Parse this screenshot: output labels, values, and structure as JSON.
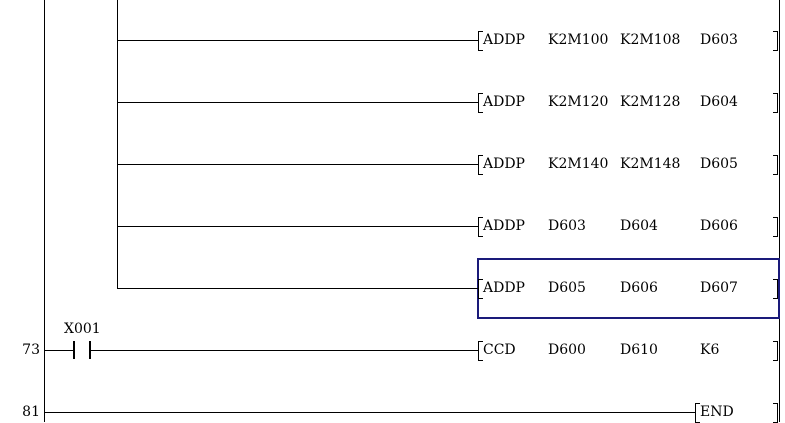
{
  "colors": {
    "cursor": "#1a1a7a",
    "lines": "#000000"
  },
  "rungs": [
    {
      "step": "",
      "branch": true,
      "instruction": "ADDP",
      "operands": [
        "K2M100",
        "K2M108",
        "D603"
      ]
    },
    {
      "step": "",
      "branch": true,
      "instruction": "ADDP",
      "operands": [
        "K2M120",
        "K2M128",
        "D604"
      ]
    },
    {
      "step": "",
      "branch": true,
      "instruction": "ADDP",
      "operands": [
        "K2M140",
        "K2M148",
        "D605"
      ]
    },
    {
      "step": "",
      "branch": true,
      "instruction": "ADDP",
      "operands": [
        "D603",
        "D604",
        "D606"
      ]
    },
    {
      "step": "",
      "branch": true,
      "instruction": "ADDP",
      "operands": [
        "D605",
        "D606",
        "D607"
      ],
      "selected": true
    },
    {
      "step": "73",
      "contact": "X001",
      "instruction": "CCD",
      "operands": [
        "D600",
        "D610",
        "K6"
      ]
    },
    {
      "step": "81",
      "instruction": "END",
      "operands": [],
      "end": true
    }
  ]
}
